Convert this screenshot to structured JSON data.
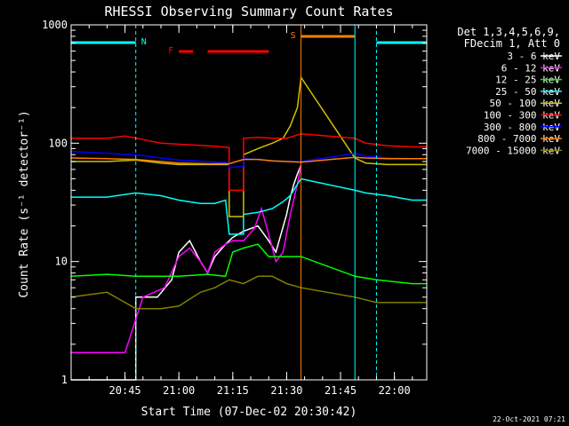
{
  "chart_data": {
    "type": "line",
    "title": "RHESSI Observing Summary Count Rates",
    "xlabel": "Start Time (07-Dec-02 20:30:42)",
    "ylabel": "Count Rate (s⁻¹ detector⁻¹)",
    "y_scale": "log",
    "ylim": [
      1,
      1000
    ],
    "xlim": [
      "20:30",
      "22:09"
    ],
    "x_tick_labels": [
      "20:45",
      "21:00",
      "21:15",
      "21:30",
      "21:45",
      "22:00"
    ],
    "y_tick_labels": [
      "1",
      "10",
      "100",
      "1000"
    ],
    "legend_header": [
      "Det 1,3,4,5,6,9,",
      "FDecim 1, Att 0"
    ],
    "legend_placement": "right",
    "timestamp": "22-Oct-2021 07:21",
    "flag_labels": [
      {
        "label": "N",
        "color": "#00ffff"
      },
      {
        "label": "F",
        "color": "#ff0000"
      },
      {
        "label": "S",
        "color": "#ff8000"
      }
    ],
    "flag_intervals": {
      "N": [
        [
          "20:30",
          "20:48"
        ],
        [
          "21:55",
          "22:09"
        ]
      ],
      "F": [
        [
          "21:00",
          "21:04"
        ],
        [
          "21:08",
          "21:25"
        ]
      ],
      "S": [
        [
          "21:34",
          "21:49"
        ]
      ]
    },
    "data_gaps": [
      [
        "21:34",
        "21:49"
      ]
    ],
    "series": [
      {
        "name": "3 - 6 keV",
        "color": "#ffffff",
        "points": [
          [
            "20:30",
            1
          ],
          [
            "20:48",
            1
          ],
          [
            "20:48",
            5
          ],
          [
            "20:54",
            5
          ],
          [
            "20:58",
            7
          ],
          [
            "21:00",
            12
          ],
          [
            "21:03",
            15
          ],
          [
            "21:06",
            10
          ],
          [
            "21:08",
            8
          ],
          [
            "21:10",
            11
          ],
          [
            "21:13",
            14
          ],
          [
            "21:15",
            16
          ],
          [
            "21:18",
            18
          ],
          [
            "21:22",
            20
          ],
          [
            "21:25",
            15
          ],
          [
            "21:27",
            12
          ],
          [
            "21:30",
            25
          ],
          [
            "21:31",
            35
          ],
          [
            "21:32",
            45
          ],
          [
            "21:33",
            55
          ],
          [
            "21:34",
            65
          ]
        ]
      },
      {
        "name": "6 - 12 keV",
        "color": "#ff00ff",
        "points": [
          [
            "20:30",
            1.7
          ],
          [
            "20:45",
            1.7
          ],
          [
            "20:50",
            5
          ],
          [
            "20:56",
            6
          ],
          [
            "21:00",
            11
          ],
          [
            "21:03",
            13
          ],
          [
            "21:06",
            10
          ],
          [
            "21:08",
            8
          ],
          [
            "21:10",
            12
          ],
          [
            "21:13",
            14
          ],
          [
            "21:15",
            15
          ],
          [
            "21:18",
            15
          ],
          [
            "21:21",
            19
          ],
          [
            "21:23",
            28
          ],
          [
            "21:25",
            17
          ],
          [
            "21:27",
            10
          ],
          [
            "21:29",
            12
          ],
          [
            "21:31",
            25
          ],
          [
            "21:33",
            45
          ],
          [
            "21:34",
            65
          ]
        ]
      },
      {
        "name": "12 - 25 keV",
        "color": "#00ff00",
        "points": [
          [
            "20:30",
            7.5
          ],
          [
            "20:40",
            7.8
          ],
          [
            "20:48",
            7.5
          ],
          [
            "20:55",
            7.5
          ],
          [
            "21:00",
            7.5
          ],
          [
            "21:08",
            7.8
          ],
          [
            "21:13",
            7.5
          ],
          [
            "21:15",
            12
          ],
          [
            "21:18",
            13
          ],
          [
            "21:22",
            14
          ],
          [
            "21:25",
            11
          ],
          [
            "21:30",
            11
          ],
          [
            "21:34",
            11
          ],
          [
            "21:49",
            7.5
          ],
          [
            "21:55",
            7
          ],
          [
            "22:05",
            6.5
          ],
          [
            "22:09",
            6.5
          ]
        ]
      },
      {
        "name": "25 - 50 keV",
        "color": "#00ffff",
        "points": [
          [
            "20:30",
            35
          ],
          [
            "20:40",
            35
          ],
          [
            "20:48",
            38
          ],
          [
            "20:55",
            36
          ],
          [
            "21:00",
            33
          ],
          [
            "21:06",
            31
          ],
          [
            "21:10",
            31
          ],
          [
            "21:13",
            33
          ],
          [
            "21:14",
            17
          ],
          [
            "21:18",
            17
          ],
          [
            "21:18",
            25
          ],
          [
            "21:22",
            26
          ],
          [
            "21:26",
            28
          ],
          [
            "21:29",
            32
          ],
          [
            "21:31",
            36
          ],
          [
            "21:33",
            45
          ],
          [
            "21:34",
            50
          ],
          [
            "21:49",
            40
          ],
          [
            "21:52",
            38
          ],
          [
            "21:58",
            36
          ],
          [
            "22:05",
            33
          ],
          [
            "22:09",
            33
          ]
        ]
      },
      {
        "name": "50 - 100 keV",
        "color": "#d0c000",
        "points": [
          [
            "20:30",
            70
          ],
          [
            "20:40",
            70
          ],
          [
            "20:48",
            72
          ],
          [
            "20:55",
            68
          ],
          [
            "21:00",
            66
          ],
          [
            "21:08",
            66
          ],
          [
            "21:14",
            66
          ],
          [
            "21:14",
            24
          ],
          [
            "21:18",
            24
          ],
          [
            "21:18",
            80
          ],
          [
            "21:22",
            90
          ],
          [
            "21:26",
            100
          ],
          [
            "21:29",
            110
          ],
          [
            "21:31",
            140
          ],
          [
            "21:33",
            200
          ],
          [
            "21:34",
            360
          ],
          [
            "21:49",
            75
          ],
          [
            "21:52",
            68
          ],
          [
            "21:58",
            66
          ],
          [
            "22:05",
            66
          ],
          [
            "22:09",
            66
          ]
        ]
      },
      {
        "name": "100 - 300 keV",
        "color": "#ff0000",
        "points": [
          [
            "20:30",
            110
          ],
          [
            "20:40",
            110
          ],
          [
            "20:45",
            115
          ],
          [
            "20:47",
            112
          ],
          [
            "20:55",
            100
          ],
          [
            "21:00",
            98
          ],
          [
            "21:08",
            95
          ],
          [
            "21:14",
            92
          ],
          [
            "21:14",
            40
          ],
          [
            "21:18",
            40
          ],
          [
            "21:18",
            110
          ],
          [
            "21:22",
            112
          ],
          [
            "21:26",
            110
          ],
          [
            "21:30",
            110
          ],
          [
            "21:34",
            120
          ],
          [
            "21:49",
            110
          ],
          [
            "21:52",
            100
          ],
          [
            "21:58",
            95
          ],
          [
            "22:05",
            93
          ],
          [
            "22:09",
            93
          ]
        ]
      },
      {
        "name": "300 - 800 keV",
        "color": "#0000ff",
        "points": [
          [
            "20:30",
            85
          ],
          [
            "20:40",
            82
          ],
          [
            "20:48",
            80
          ],
          [
            "20:55",
            75
          ],
          [
            "21:00",
            72
          ],
          [
            "21:08",
            70
          ],
          [
            "21:14",
            68
          ],
          [
            "21:14",
            62
          ],
          [
            "21:18",
            64
          ],
          [
            "21:18",
            74
          ],
          [
            "21:22",
            73
          ],
          [
            "21:26",
            71
          ],
          [
            "21:30",
            70
          ],
          [
            "21:34",
            70
          ],
          [
            "21:49",
            82
          ],
          [
            "21:52",
            78
          ],
          [
            "21:58",
            75
          ],
          [
            "22:05",
            74
          ],
          [
            "22:09",
            74
          ]
        ]
      },
      {
        "name": "800 - 7000 keV",
        "color": "#ff8000",
        "points": [
          [
            "20:30",
            75
          ],
          [
            "20:40",
            74
          ],
          [
            "20:48",
            73
          ],
          [
            "20:55",
            70
          ],
          [
            "21:00",
            68
          ],
          [
            "21:08",
            67
          ],
          [
            "21:14",
            67
          ],
          [
            "21:18",
            73
          ],
          [
            "21:22",
            73
          ],
          [
            "21:26",
            71
          ],
          [
            "21:30",
            70
          ],
          [
            "21:34",
            69
          ],
          [
            "21:49",
            76
          ],
          [
            "21:52",
            75
          ],
          [
            "21:58",
            74
          ],
          [
            "22:05",
            74
          ],
          [
            "22:09",
            74
          ]
        ]
      },
      {
        "name": "7000 - 15000 keV",
        "color": "#808000",
        "points": [
          [
            "20:30",
            5
          ],
          [
            "20:40",
            5.5
          ],
          [
            "20:48",
            4
          ],
          [
            "20:55",
            4
          ],
          [
            "21:00",
            4.2
          ],
          [
            "21:06",
            5.5
          ],
          [
            "21:10",
            6
          ],
          [
            "21:14",
            7
          ],
          [
            "21:18",
            6.5
          ],
          [
            "21:22",
            7.5
          ],
          [
            "21:26",
            7.5
          ],
          [
            "21:30",
            6.5
          ],
          [
            "21:34",
            6
          ],
          [
            "21:49",
            5
          ],
          [
            "21:55",
            4.5
          ],
          [
            "22:05",
            4.5
          ],
          [
            "22:09",
            4.5
          ]
        ]
      }
    ]
  }
}
